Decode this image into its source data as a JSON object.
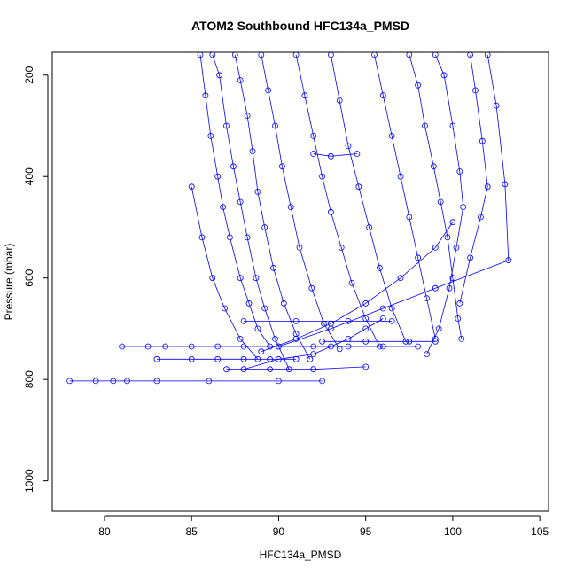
{
  "chart_data": {
    "type": "line",
    "title": "ATOM2 Southbound HFC134a_PMSD",
    "xlabel": "HFC134a_PMSD",
    "ylabel": "Pressure (mbar)",
    "xlim": [
      77,
      105.5
    ],
    "ylim": [
      1060,
      155
    ],
    "y_inverted": true,
    "xticks": [
      80,
      85,
      90,
      95,
      100,
      105
    ],
    "yticks": [
      200,
      400,
      600,
      800,
      1000
    ],
    "marker": "open-circle",
    "series_color": "#0000ff",
    "series": [
      {
        "points": [
          [
            78.0,
            803
          ],
          [
            79.5,
            803
          ],
          [
            80.5,
            803
          ],
          [
            81.3,
            803
          ],
          [
            83.0,
            803
          ],
          [
            86.0,
            803
          ],
          [
            90.0,
            803
          ],
          [
            92.5,
            803
          ]
        ]
      },
      {
        "points": [
          [
            81.0,
            735
          ],
          [
            82.5,
            735
          ],
          [
            83.5,
            735
          ],
          [
            85.0,
            735
          ],
          [
            86.5,
            735
          ],
          [
            88.0,
            735
          ],
          [
            90.0,
            735
          ],
          [
            92.0,
            735
          ],
          [
            94.0,
            735
          ],
          [
            96.0,
            735
          ],
          [
            98.0,
            735
          ]
        ]
      },
      {
        "points": [
          [
            83.0,
            760
          ],
          [
            85.0,
            760
          ],
          [
            86.5,
            760
          ],
          [
            88.0,
            760
          ],
          [
            89.5,
            760
          ],
          [
            91.0,
            760
          ]
        ]
      },
      {
        "points": [
          [
            85.5,
            160
          ],
          [
            85.8,
            240
          ],
          [
            86.1,
            320
          ],
          [
            86.5,
            400
          ],
          [
            86.8,
            460
          ],
          [
            87.2,
            520
          ],
          [
            87.8,
            600
          ],
          [
            88.3,
            650
          ],
          [
            88.8,
            700
          ],
          [
            89.5,
            735
          ]
        ]
      },
      {
        "points": [
          [
            86.2,
            160
          ],
          [
            86.6,
            200
          ],
          [
            87.0,
            300
          ],
          [
            87.4,
            380
          ],
          [
            87.8,
            450
          ],
          [
            88.2,
            520
          ],
          [
            88.7,
            600
          ],
          [
            89.2,
            660
          ],
          [
            89.8,
            720
          ],
          [
            90.6,
            780
          ]
        ]
      },
      {
        "points": [
          [
            87.5,
            160
          ],
          [
            87.8,
            210
          ],
          [
            88.2,
            280
          ],
          [
            88.5,
            350
          ],
          [
            88.8,
            430
          ],
          [
            89.2,
            500
          ],
          [
            89.7,
            580
          ],
          [
            90.3,
            650
          ],
          [
            91.0,
            710
          ],
          [
            91.8,
            760
          ]
        ]
      },
      {
        "points": [
          [
            89.0,
            160
          ],
          [
            89.4,
            230
          ],
          [
            89.8,
            300
          ],
          [
            90.2,
            380
          ],
          [
            90.7,
            460
          ],
          [
            91.2,
            540
          ],
          [
            91.9,
            620
          ],
          [
            92.6,
            690
          ],
          [
            93.5,
            740
          ]
        ]
      },
      {
        "points": [
          [
            91.0,
            160
          ],
          [
            91.5,
            240
          ],
          [
            92.0,
            320
          ],
          [
            92.5,
            400
          ],
          [
            93.0,
            470
          ],
          [
            93.6,
            540
          ],
          [
            94.2,
            610
          ],
          [
            95.0,
            680
          ],
          [
            95.8,
            735
          ]
        ]
      },
      {
        "points": [
          [
            93.0,
            160
          ],
          [
            93.5,
            250
          ],
          [
            94.0,
            340
          ],
          [
            94.6,
            420
          ],
          [
            95.2,
            500
          ],
          [
            95.8,
            580
          ],
          [
            96.5,
            660
          ],
          [
            97.3,
            725
          ]
        ]
      },
      {
        "points": [
          [
            95.5,
            160
          ],
          [
            96.0,
            240
          ],
          [
            96.5,
            320
          ],
          [
            97.0,
            400
          ],
          [
            97.5,
            480
          ],
          [
            98.0,
            560
          ],
          [
            98.5,
            640
          ],
          [
            99.0,
            720
          ]
        ]
      },
      {
        "points": [
          [
            97.5,
            160
          ],
          [
            98.0,
            220
          ],
          [
            98.4,
            300
          ],
          [
            98.9,
            380
          ],
          [
            99.3,
            450
          ],
          [
            99.7,
            520
          ],
          [
            100.0,
            600
          ],
          [
            100.3,
            680
          ],
          [
            100.5,
            720
          ]
        ]
      },
      {
        "points": [
          [
            99.0,
            160
          ],
          [
            99.5,
            200
          ],
          [
            100.0,
            300
          ],
          [
            100.4,
            390
          ],
          [
            100.6,
            460
          ],
          [
            100.2,
            540
          ],
          [
            99.8,
            620
          ],
          [
            99.2,
            700
          ],
          [
            98.5,
            750
          ]
        ]
      },
      {
        "points": [
          [
            101.0,
            160
          ],
          [
            101.3,
            230
          ],
          [
            101.7,
            330
          ],
          [
            102.0,
            420
          ],
          [
            101.6,
            480
          ],
          [
            101.0,
            560
          ],
          [
            100.4,
            650
          ]
        ]
      },
      {
        "points": [
          [
            102.0,
            160
          ],
          [
            102.5,
            260
          ],
          [
            103.0,
            415
          ],
          [
            103.2,
            565
          ],
          [
            99.0,
            620
          ],
          [
            96.0,
            660
          ],
          [
            93.0,
            700
          ],
          [
            90.0,
            735
          ]
        ]
      },
      {
        "points": [
          [
            85.0,
            420
          ],
          [
            85.6,
            520
          ],
          [
            86.2,
            600
          ],
          [
            86.9,
            660
          ],
          [
            87.8,
            720
          ],
          [
            88.8,
            760
          ]
        ]
      },
      {
        "points": [
          [
            96.0,
            680
          ],
          [
            95.0,
            700
          ],
          [
            94.0,
            720
          ],
          [
            93.0,
            735
          ],
          [
            92.0,
            750
          ],
          [
            90.0,
            760
          ],
          [
            88.0,
            780
          ]
        ]
      },
      {
        "points": [
          [
            100.0,
            490
          ],
          [
            99.0,
            540
          ],
          [
            97.0,
            600
          ],
          [
            95.0,
            650
          ],
          [
            93.0,
            690
          ],
          [
            91.0,
            720
          ],
          [
            89.0,
            745
          ]
        ]
      },
      {
        "points": [
          [
            92.0,
            355
          ],
          [
            93.0,
            360
          ],
          [
            94.5,
            355
          ]
        ]
      },
      {
        "points": [
          [
            88.0,
            685
          ],
          [
            91.0,
            685
          ],
          [
            94.0,
            685
          ],
          [
            96.5,
            685
          ]
        ]
      },
      {
        "points": [
          [
            92.5,
            725
          ],
          [
            95.0,
            725
          ],
          [
            97.5,
            725
          ],
          [
            99.0,
            725
          ]
        ]
      },
      {
        "points": [
          [
            87.0,
            780
          ],
          [
            89.5,
            780
          ],
          [
            92.0,
            780
          ],
          [
            95.0,
            775
          ]
        ]
      }
    ]
  }
}
